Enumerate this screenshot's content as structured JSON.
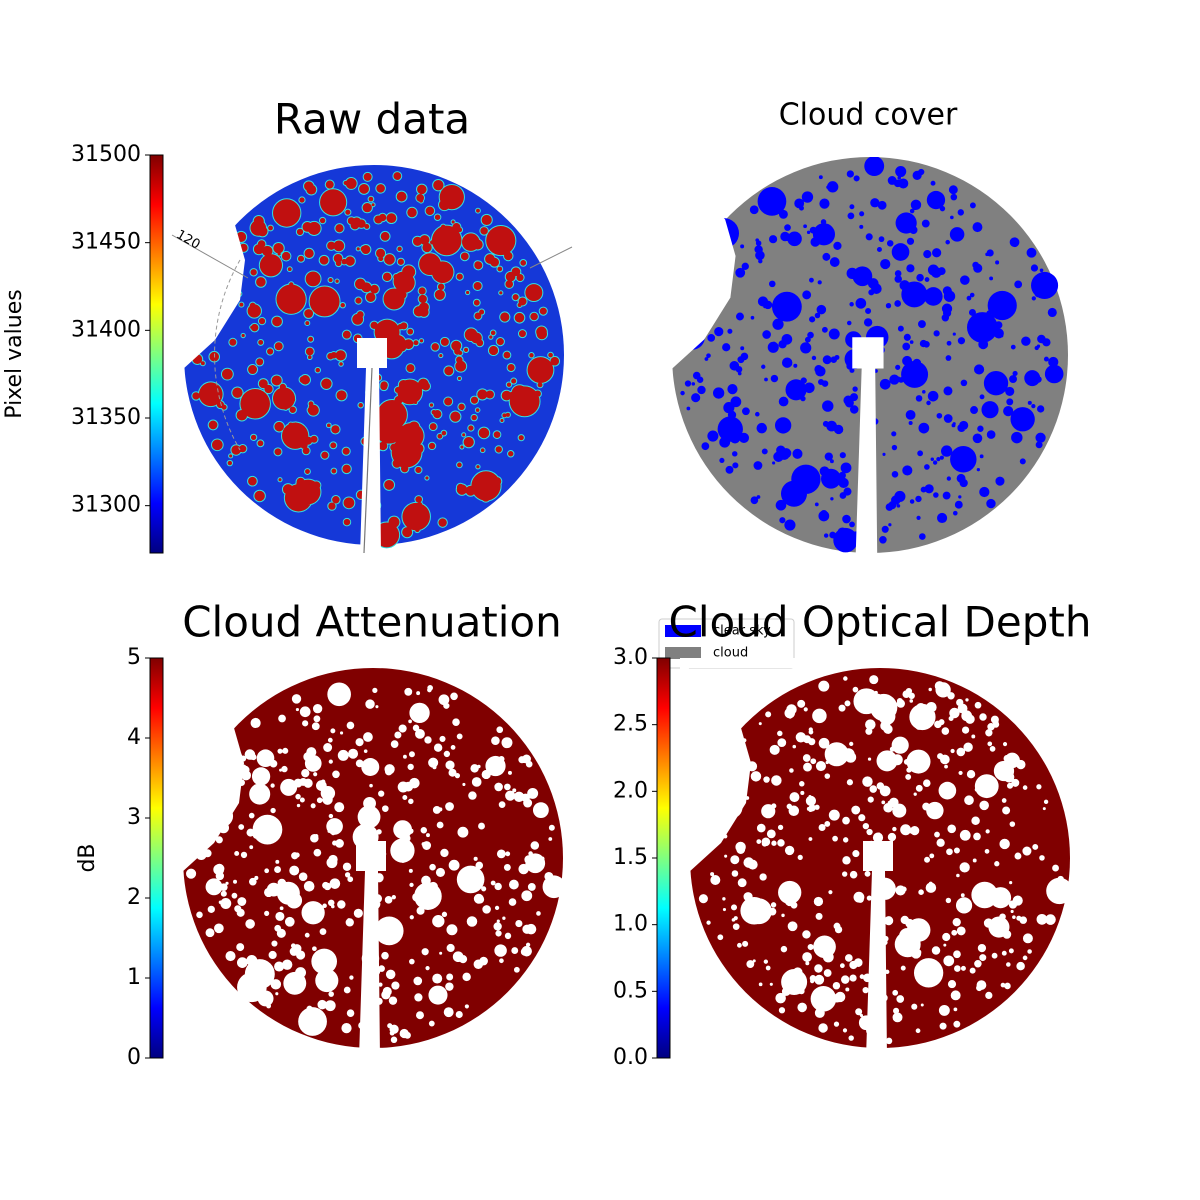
{
  "chart_data": [
    {
      "type": "image",
      "title": "Raw data",
      "annotations": [
        "120"
      ],
      "colorbar": {
        "label": "Pixel values",
        "colormap": "jet",
        "ylim": [
          31273,
          31500
        ],
        "yticks": [
          31300,
          31350,
          31400,
          31450,
          31500
        ]
      }
    },
    {
      "type": "image",
      "title": "Cloud cover",
      "series": [
        {
          "name": "clear sky",
          "color": "#0000ff"
        },
        {
          "name": "cloud",
          "color": "#808080"
        }
      ]
    },
    {
      "type": "image",
      "title": "Cloud Attenuation",
      "colorbar": {
        "label": "dB",
        "colormap": "jet",
        "ylim": [
          0,
          5
        ],
        "yticks": [
          0,
          1,
          2,
          3,
          4,
          5
        ]
      }
    },
    {
      "type": "image",
      "title": "Cloud Optical Depth",
      "colorbar": {
        "colormap": "jet",
        "ylim": [
          0,
          3
        ],
        "yticks": [
          {
            "value": 0,
            "label": "0.0"
          },
          0.5,
          {
            "value": 1,
            "label": "1.0"
          },
          1.5,
          {
            "value": 2,
            "label": "2.0"
          },
          2.5,
          {
            "value": 3,
            "label": "3.0"
          }
        ]
      }
    }
  ]
}
